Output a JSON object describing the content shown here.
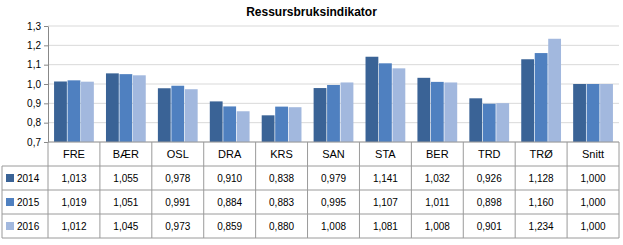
{
  "chart_data": {
    "type": "bar",
    "title": "Ressursbruksindikator",
    "categories": [
      "FRE",
      "BÆR",
      "OSL",
      "DRA",
      "KRS",
      "SAN",
      "STA",
      "BER",
      "TRD",
      "TRØ",
      "Snitt"
    ],
    "series": [
      {
        "name": "2014",
        "color": "#3a6396",
        "values": [
          1.013,
          1.055,
          0.978,
          0.91,
          0.838,
          0.979,
          1.141,
          1.032,
          0.926,
          1.128,
          1.0
        ],
        "value_labels": [
          "1,013",
          "1,055",
          "0,978",
          "0,910",
          "0,838",
          "0,979",
          "1,141",
          "1,032",
          "0,926",
          "1,128",
          "1,000"
        ]
      },
      {
        "name": "2015",
        "color": "#4f80c0",
        "values": [
          1.019,
          1.051,
          0.991,
          0.884,
          0.883,
          0.995,
          1.107,
          1.011,
          0.898,
          1.16,
          1.0
        ],
        "value_labels": [
          "1,019",
          "1,051",
          "0,991",
          "0,884",
          "0,883",
          "0,995",
          "1,107",
          "1,011",
          "0,898",
          "1,160",
          "1,000"
        ]
      },
      {
        "name": "2016",
        "color": "#a2b8de",
        "values": [
          1.012,
          1.045,
          0.973,
          0.859,
          0.88,
          1.008,
          1.081,
          1.008,
          0.901,
          1.234,
          1.0
        ],
        "value_labels": [
          "1,012",
          "1,045",
          "0,973",
          "0,859",
          "0,880",
          "1,008",
          "1,081",
          "1,008",
          "0,901",
          "1,234",
          "1,000"
        ]
      }
    ],
    "ylim": [
      0.7,
      1.3
    ],
    "yticks": [
      {
        "value": 0.7,
        "label": "0,7"
      },
      {
        "value": 0.8,
        "label": "0,8"
      },
      {
        "value": 0.9,
        "label": "0,9"
      },
      {
        "value": 1.0,
        "label": "1,0"
      },
      {
        "value": 1.1,
        "label": "1,1"
      },
      {
        "value": 1.2,
        "label": "1,2"
      },
      {
        "value": 1.3,
        "label": "1,3"
      }
    ],
    "grid": true
  }
}
